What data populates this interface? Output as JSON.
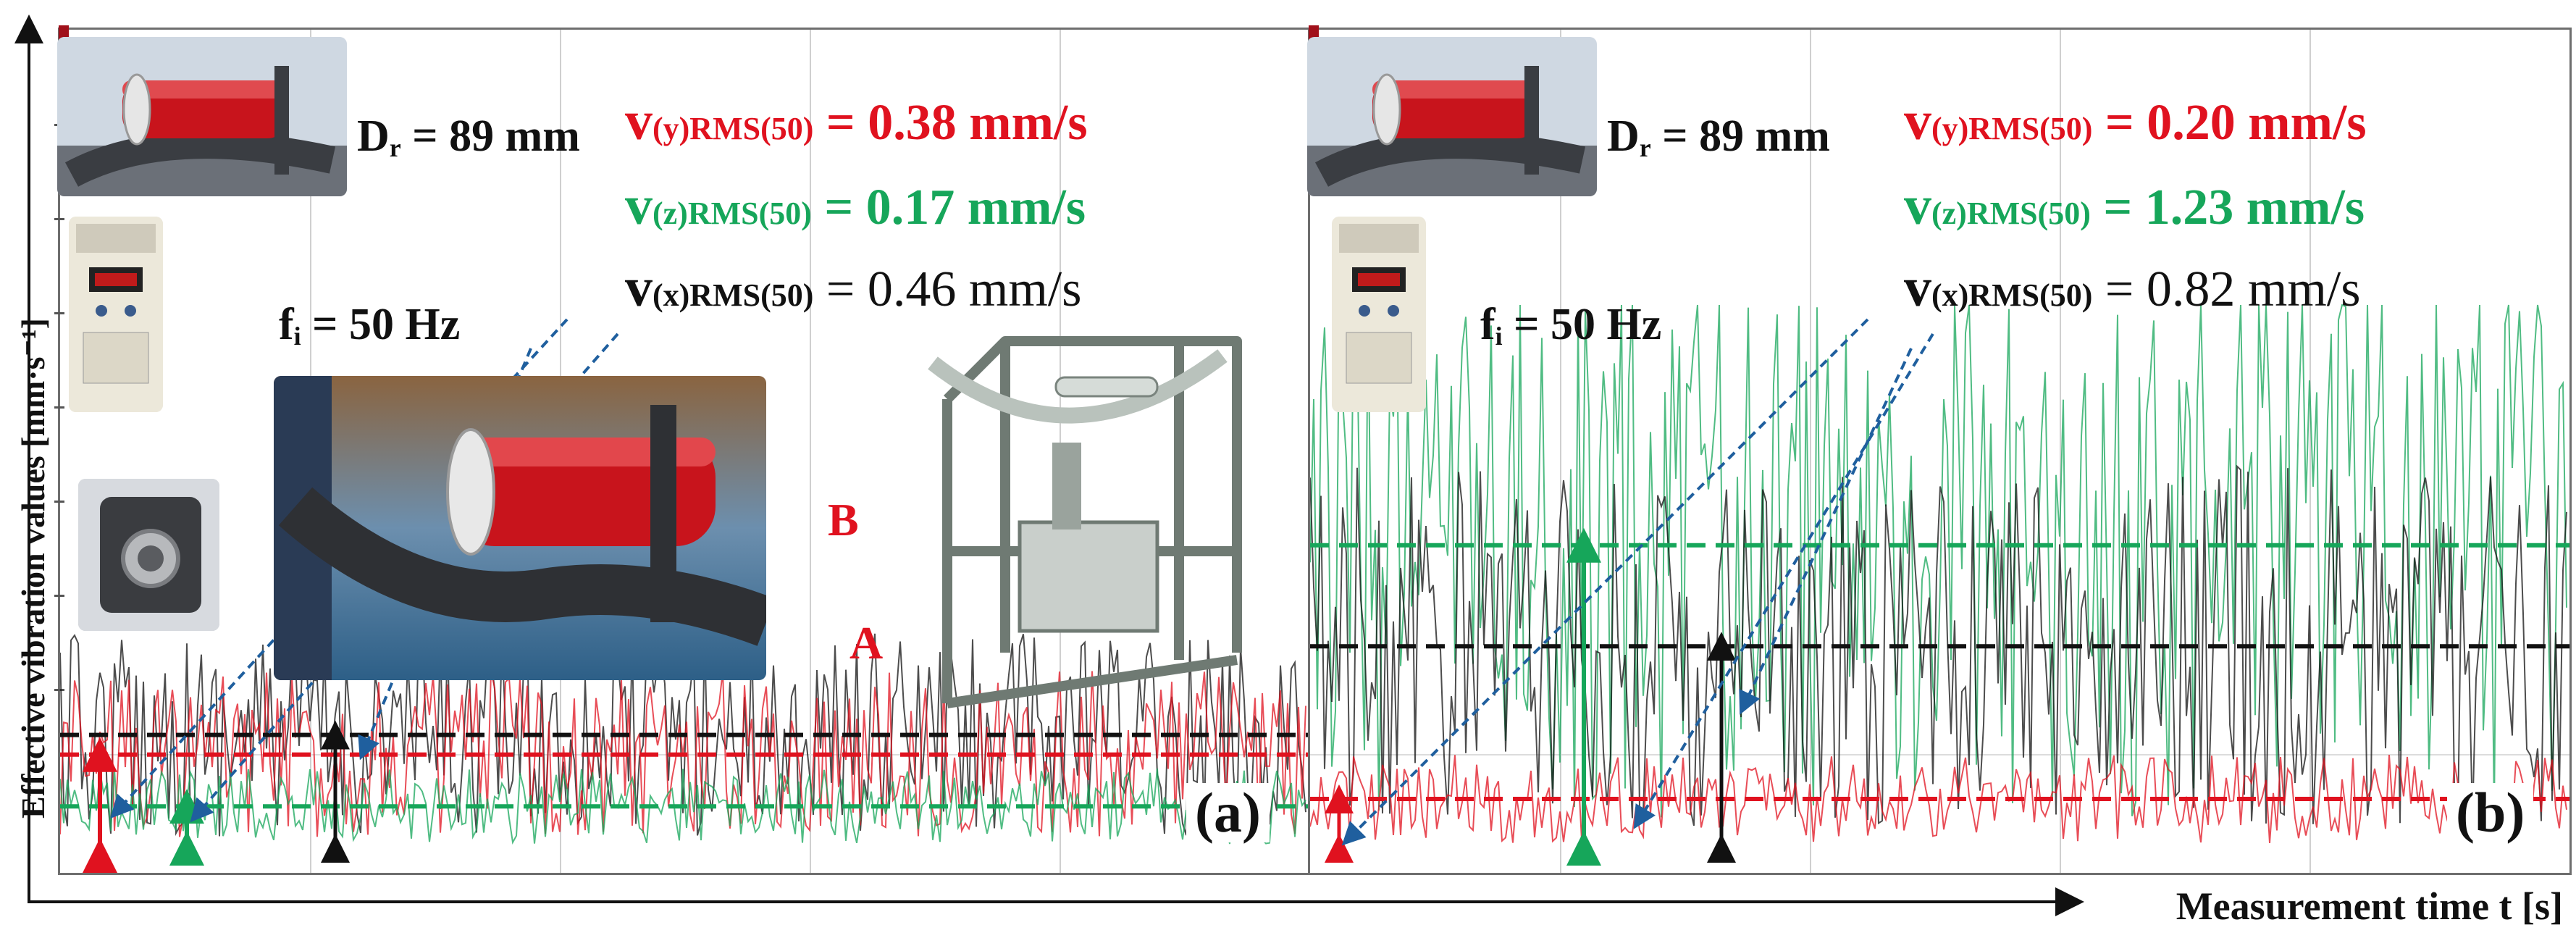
{
  "axis": {
    "ylabel": "Effective vibration values [mm·s⁻¹]",
    "xlabel": "Measurement time t [s]"
  },
  "chart_data": [
    {
      "type": "line",
      "panel": "(a)",
      "xlabel": "Measurement time t [s]",
      "ylabel": "Effective vibration values [mm·s⁻¹]",
      "grid": true,
      "conditions": {
        "Dr": "Dr = 89 mm",
        "fi": "fi = 50 Hz"
      },
      "series": [
        {
          "name": "v(y)RMS(50)",
          "color": "#e0121f",
          "rms": 0.38,
          "label": "v(y)RMS(50) = 0.38 mm/s"
        },
        {
          "name": "v(z)RMS(50)",
          "color": "#16a65a",
          "rms": 0.17,
          "label": "v(z)RMS(50) = 0.17 mm/s"
        },
        {
          "name": "v(x)RMS(50)",
          "color": "#111111",
          "rms": 0.46,
          "label": "v(x)RMS(50) = 0.46 mm/s"
        }
      ]
    },
    {
      "type": "line",
      "panel": "(b)",
      "xlabel": "Measurement time t [s]",
      "ylabel": "Effective vibration values [mm·s⁻¹]",
      "grid": true,
      "conditions": {
        "Dr": "Dr = 89 mm",
        "fi": "fi = 50 Hz"
      },
      "series": [
        {
          "name": "v(y)RMS(50)",
          "color": "#e0121f",
          "rms": 0.2,
          "label": "v(y)RMS(50) = 0.20 mm/s"
        },
        {
          "name": "v(z)RMS(50)",
          "color": "#16a65a",
          "rms": 1.23,
          "label": "v(z)RMS(50) = 1.23 mm/s"
        },
        {
          "name": "v(x)RMS(50)",
          "color": "#111111",
          "rms": 0.82,
          "label": "v(x)RMS(50) = 0.82 mm/s"
        }
      ]
    }
  ],
  "panels": {
    "a": {
      "tag": "(a)",
      "dr_prefix": "D",
      "dr_sub": "r",
      "dr_rest": " = 89 mm",
      "fi_prefix": "f",
      "fi_sub": "i",
      "fi_rest": " = 50 Hz",
      "eq_y": {
        "v": "v",
        "sub": "(y)RMS(50)",
        "val": " = 0.38 mm/s"
      },
      "eq_z": {
        "v": "v",
        "sub": "(z)RMS(50)",
        "val": " = 0.17 mm/s"
      },
      "eq_x": {
        "v": "v",
        "sub": "(x)RMS(50)",
        "val": " = 0.46 mm/s"
      },
      "letter_a": "A",
      "letter_b": "B"
    },
    "b": {
      "tag": "(b)",
      "dr_prefix": "D",
      "dr_sub": "r",
      "dr_rest": " = 89 mm",
      "fi_prefix": "f",
      "fi_sub": "i",
      "fi_rest": " = 50 Hz",
      "eq_y": {
        "v": "v",
        "sub": "(y)RMS(50)",
        "val": " = 0.20 mm/s"
      },
      "eq_z": {
        "v": "v",
        "sub": "(z)RMS(50)",
        "val": " = 1.23 mm/s"
      },
      "eq_x": {
        "v": "v",
        "sub": "(x)RMS(50)",
        "val": " = 0.82 mm/s"
      }
    }
  },
  "colors": {
    "red": "#e0121f",
    "green": "#16a65a",
    "black": "#111111",
    "blue": "#1f5f9e"
  },
  "icons": [
    "idler-roller-photo",
    "frequency-inverter-photo",
    "accelerometer-photo",
    "test-stand-drawing"
  ]
}
